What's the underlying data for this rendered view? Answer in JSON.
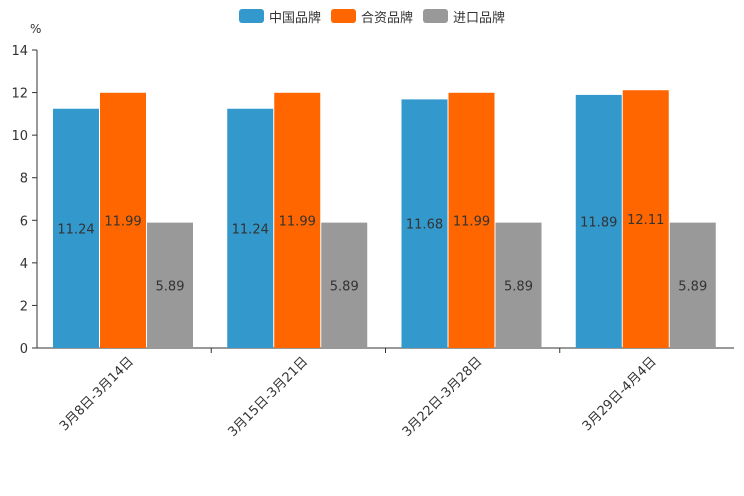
{
  "chart_data": {
    "type": "bar",
    "title": "",
    "unit": "%",
    "xlabel": "",
    "ylabel": "%",
    "ylim": [
      0,
      14
    ],
    "yticks": [
      0,
      2,
      4,
      6,
      8,
      10,
      12,
      14
    ],
    "categories": [
      "3月8日-3月14日",
      "3月15日-3月21日",
      "3月22日-3月28日",
      "3月29日-4月4日"
    ],
    "series": [
      {
        "name": "中国品牌",
        "color": "#3399cc",
        "values": [
          11.24,
          11.24,
          11.68,
          11.89
        ],
        "labels": [
          "11.24",
          "11.24",
          "11.68",
          "11.89"
        ]
      },
      {
        "name": "合资品牌",
        "color": "#ff6600",
        "values": [
          11.99,
          11.99,
          11.99,
          12.11
        ],
        "labels": [
          "11.99",
          "11.99",
          "11.99",
          "12.11"
        ]
      },
      {
        "name": "进口品牌",
        "color": "#999999",
        "values": [
          5.89,
          5.89,
          5.89,
          5.89
        ],
        "labels": [
          "5.89",
          "5.89",
          "5.89",
          "5.89"
        ]
      }
    ],
    "legend_position": "top-center",
    "grid": false
  }
}
